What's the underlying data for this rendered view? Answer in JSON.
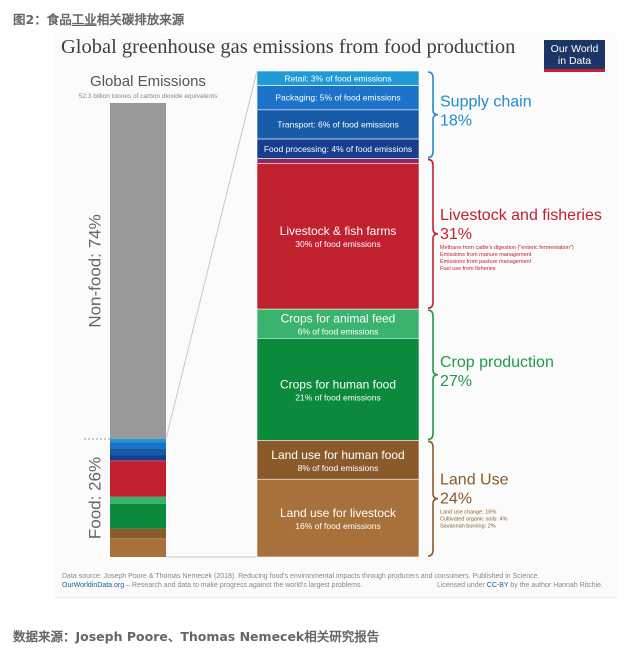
{
  "captions": {
    "top_prefix": "图2：食品",
    "top_underlined": "工业",
    "top_suffix": "相关碳排放来源",
    "bottom": "数据来源：Joseph Poore、Thomas Nemecek相关研究报告"
  },
  "logo": {
    "line1": "Our World",
    "line2": "in Data"
  },
  "footer": {
    "source": "Data source: Joseph Poore & Thomas Nemecek (2018). Reducing food's environmental impacts through producers and consumers. Published in Science.",
    "site": "OurWorldinData.org",
    "site_tagline": " – Research and data to make progress against the world's largest problems.",
    "license_prefix": "Licensed under ",
    "license_link": "CC-BY",
    "license_suffix": " by the author Hannah Ritchie."
  },
  "chart_data": {
    "type": "bar",
    "title": "Global greenhouse gas emissions from food production",
    "global_label": "Global Emissions",
    "global_sublabel": "52.3 billion tonnes of carbon dioxide equivalents",
    "total_emissions_label": "52.3 billion tonnes",
    "left_bar": [
      {
        "name": "Non-food",
        "label": "Non-food: 74%",
        "value": 74,
        "color": "#999999"
      },
      {
        "name": "Food",
        "label": "Food: 26%",
        "value": 26,
        "color": "#b8b8b8"
      }
    ],
    "food_breakdown": [
      {
        "label": "Retail",
        "sub": "3% of food emissions",
        "value": 3,
        "color": "#1f9ad6",
        "style": "inline"
      },
      {
        "label": "Packaging",
        "sub": "5% of food emissions",
        "value": 5,
        "color": "#1c73c9",
        "style": "inline"
      },
      {
        "label": "Transport",
        "sub": "6% of food emissions",
        "value": 6,
        "color": "#175ba8",
        "style": "inline"
      },
      {
        "label": "Food processing",
        "sub": "4% of food emissions",
        "value": 4,
        "color": "#163d8e",
        "style": "inline"
      },
      {
        "label": "Methane from cattle's digestion",
        "sub": "",
        "value": 1,
        "color": "#8b2a60",
        "style": "none"
      },
      {
        "label": "Livestock & fish farms",
        "sub": "30% of food emissions",
        "value": 30,
        "color": "#c1202f",
        "style": "block"
      },
      {
        "label": "Crops for animal feed",
        "sub": "6% of food emissions",
        "value": 6,
        "color": "#3ab36e",
        "style": "block"
      },
      {
        "label": "Crops for human food",
        "sub": "21% of food emissions",
        "value": 21,
        "color": "#0b8a3c",
        "style": "block"
      },
      {
        "label": "Land use for human food",
        "sub": "8% of food emissions",
        "value": 8,
        "color": "#8b5a2b",
        "style": "block"
      },
      {
        "label": "Land use for livestock",
        "sub": "16% of food emissions",
        "value": 16,
        "color": "#a8703a",
        "style": "block"
      }
    ],
    "groups": [
      {
        "label": "Supply chain",
        "pct": "18%",
        "value": 18,
        "color": "#1f8bd0",
        "notes": []
      },
      {
        "label": "Livestock and fisheries",
        "pct": "31%",
        "value": 31,
        "color": "#c1202f",
        "notes": [
          "Methane from cattle's digestion (\"enteric fermentation\")",
          "Emissions from manure management",
          "Emissions from pasture management",
          "Fuel use from fisheries"
        ]
      },
      {
        "label": "Crop production",
        "pct": "27%",
        "value": 27,
        "color": "#1e9a4d",
        "notes": []
      },
      {
        "label": "Land Use",
        "pct": "24%",
        "value": 24,
        "color": "#8b5a2b",
        "notes": [
          "Land use change: 16%",
          "Cultivated organic soils: 4%",
          "Savannah burning: 2%"
        ]
      }
    ]
  }
}
